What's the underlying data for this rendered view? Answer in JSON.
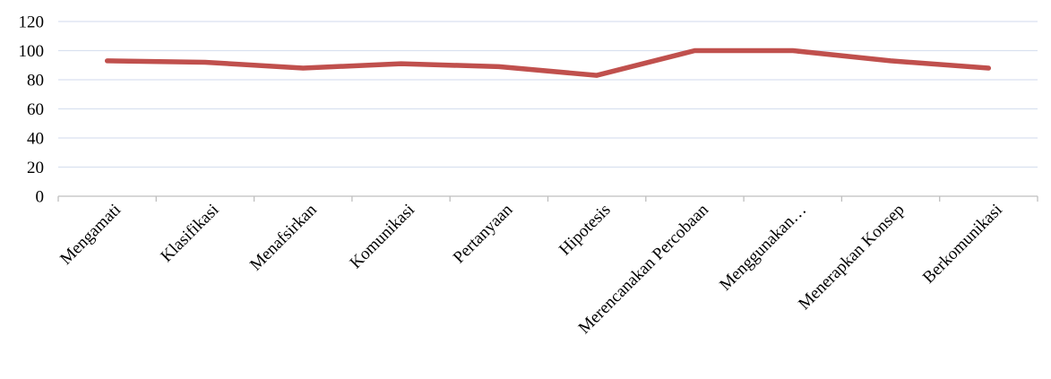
{
  "chart_data": {
    "type": "line",
    "categories": [
      "Mengamati",
      "Klasifikasi",
      "Menafsirkan",
      "Komunikasi",
      "Pertanyaan",
      "Hipotesis",
      "Merencanakan Percobaan",
      "Menggunakan…",
      "Menerapkan Konsep",
      "Berkomunikasi"
    ],
    "series": [
      {
        "values": [
          93,
          92,
          88,
          91,
          89,
          83,
          100,
          100,
          93,
          88
        ]
      }
    ],
    "yticks": [
      "0",
      "20",
      "40",
      "60",
      "80",
      "100",
      "120"
    ],
    "ylim": [
      0,
      120
    ],
    "grid": true,
    "legend": "none",
    "colors": {
      "line": "#C0504D",
      "grid": "#D9E1F0",
      "axis": "#BFBFBF"
    }
  }
}
